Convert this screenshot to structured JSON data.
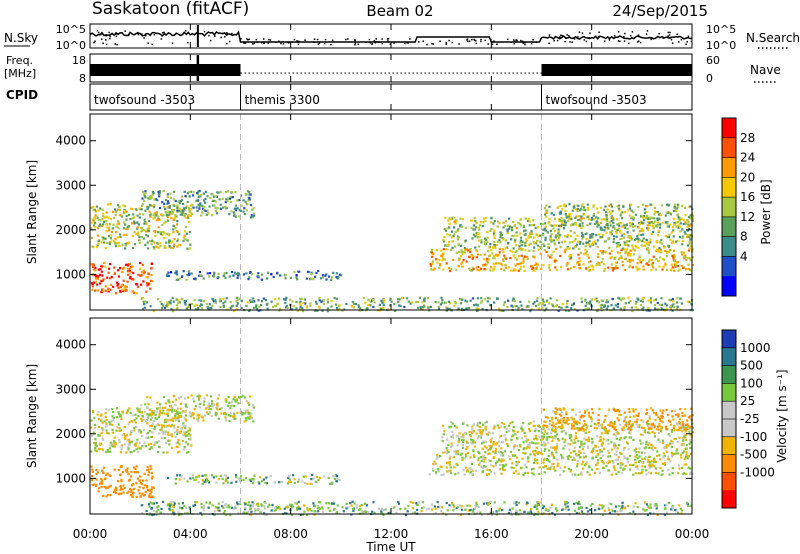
{
  "header": {
    "station": "Saskatoon (fitACF)",
    "beam": "Beam 02",
    "date": "24/Sep/2015"
  },
  "summary_panels": {
    "nsky_label": "N.Sky",
    "nsky_ticks": [
      "10^5",
      "10^0"
    ],
    "nsearch_label": "N.Search",
    "nsearch_ticks": [
      "10^5",
      "10^0"
    ],
    "freq_label_line1": "Freq.",
    "freq_label_line2": "[MHz]",
    "freq_ticks": [
      "18",
      "8"
    ],
    "nave_label": "Nave",
    "nave_ticks": [
      "60",
      "0"
    ],
    "cpid_label": "CPID",
    "cpid_segments": [
      {
        "label": "twofsound -3503",
        "start_h": 0,
        "end_h": 6
      },
      {
        "label": "themis 3300",
        "start_h": 6,
        "end_h": 18
      },
      {
        "label": "twofsound -3503",
        "start_h": 18,
        "end_h": 24
      }
    ]
  },
  "power_panel": {
    "ylabel": "Slant Range [km]",
    "yticks": [
      "4000",
      "3000",
      "2000",
      "1000"
    ],
    "colorbar_label": "Power [dB]",
    "colorbar_ticks": [
      "28",
      "24",
      "20",
      "16",
      "12",
      "8",
      "4"
    ],
    "colorbar_colors": [
      "#ff0000",
      "#ff5000",
      "#ff9a00",
      "#f5c800",
      "#a8c840",
      "#5aa05a",
      "#3d8c8c",
      "#2050c8",
      "#0000ff"
    ]
  },
  "velocity_panel": {
    "ylabel": "Slant Range [km]",
    "yticks": [
      "4000",
      "3000",
      "2000",
      "1000"
    ],
    "colorbar_label": "Velocity [m s⁻¹]",
    "colorbar_ticks": [
      "1000",
      "500",
      "100",
      "25",
      "-25",
      "-100",
      "-500",
      "-1000"
    ],
    "colorbar_colors": [
      "#1e3cb4",
      "#287890",
      "#3c9650",
      "#78c83c",
      "#c8c8c8",
      "#c8c8c8",
      "#f0b400",
      "#ff8c00",
      "#ff5000",
      "#ff0000"
    ]
  },
  "xaxis": {
    "label": "Time UT",
    "ticks": [
      "00:00",
      "04:00",
      "08:00",
      "12:00",
      "16:00",
      "20:00",
      "00:00"
    ]
  },
  "chart_data": {
    "type": "heatmap",
    "title": "Saskatoon (fitACF)",
    "subtitle": "Beam 02 24/Sep/2015",
    "xlabel": "Time UT",
    "ylabel": "Slant Range [km]",
    "x_range_hours": [
      0,
      24
    ],
    "y_range_km": [
      200,
      4600
    ],
    "power_range_dB": [
      0,
      30
    ],
    "velocity_range_ms": [
      -1000,
      1000
    ],
    "scatter_regions": [
      {
        "start_h": 0.0,
        "end_h": 2.5,
        "range_min_km": 600,
        "range_max_km": 1300,
        "power_dB": 26,
        "velocity_ms": -400
      },
      {
        "start_h": 0.0,
        "end_h": 4.0,
        "range_min_km": 1600,
        "range_max_km": 2600,
        "power_dB": 16,
        "velocity_ms": 0
      },
      {
        "start_h": 2.0,
        "end_h": 6.5,
        "range_min_km": 2300,
        "range_max_km": 2900,
        "power_dB": 10,
        "velocity_ms": 0
      },
      {
        "start_h": 3.0,
        "end_h": 10.0,
        "range_min_km": 900,
        "range_max_km": 1100,
        "power_dB": 8,
        "velocity_ms": 50
      },
      {
        "start_h": 2.0,
        "end_h": 24.0,
        "range_min_km": 200,
        "range_max_km": 500,
        "power_dB": 12,
        "velocity_ms": 50
      },
      {
        "start_h": 13.5,
        "end_h": 24.0,
        "range_min_km": 1100,
        "range_max_km": 1600,
        "power_dB": 20,
        "velocity_ms": 0
      },
      {
        "start_h": 14.0,
        "end_h": 24.0,
        "range_min_km": 1600,
        "range_max_km": 2300,
        "power_dB": 14,
        "velocity_ms": 0
      },
      {
        "start_h": 18.0,
        "end_h": 24.0,
        "range_min_km": 2100,
        "range_max_km": 2600,
        "power_dB": 14,
        "velocity_ms": -100
      }
    ]
  }
}
